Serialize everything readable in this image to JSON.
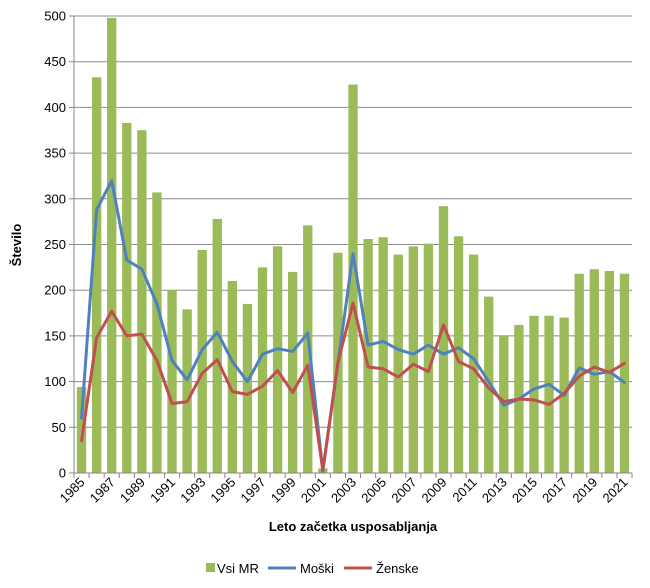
{
  "chart_data": {
    "type": "bar",
    "title": "",
    "xlabel": "Leto začetka usposabljanja",
    "ylabel": "Število",
    "ylim": [
      0,
      500
    ],
    "y_ticks": [
      0,
      50,
      100,
      150,
      200,
      250,
      300,
      350,
      400,
      450,
      500
    ],
    "grid": true,
    "legend_position": "bottom",
    "categories": [
      "1985",
      "1986",
      "1987",
      "1988",
      "1989",
      "1990",
      "1991",
      "1992",
      "1993",
      "1994",
      "1995",
      "1996",
      "1997",
      "1998",
      "1999",
      "2000",
      "2001",
      "2002",
      "2003",
      "2004",
      "2005",
      "2006",
      "2007",
      "2008",
      "2009",
      "2010",
      "2011",
      "2012",
      "2013",
      "2014",
      "2015",
      "2016",
      "2017",
      "2018",
      "2019",
      "2020",
      "2021"
    ],
    "x_tick_labels": [
      "1985",
      "1987",
      "1989",
      "1991",
      "1993",
      "1995",
      "1997",
      "1999",
      "2001",
      "2003",
      "2005",
      "2007",
      "2009",
      "2011",
      "2013",
      "2015",
      "2017",
      "2019",
      "2021"
    ],
    "series": [
      {
        "name": "Vsi MR",
        "type": "bar",
        "color": "#9BBB59",
        "values": [
          94,
          433,
          498,
          383,
          375,
          307,
          200,
          179,
          244,
          278,
          210,
          185,
          225,
          248,
          220,
          271,
          5,
          241,
          425,
          256,
          258,
          239,
          248,
          251,
          292,
          259,
          239,
          193,
          150,
          162,
          172,
          172,
          170,
          218,
          223,
          221,
          218
        ]
      },
      {
        "name": "Moški",
        "type": "line",
        "color": "#4F81BD",
        "values": [
          60,
          288,
          320,
          233,
          223,
          185,
          123,
          102,
          135,
          154,
          122,
          100,
          130,
          136,
          133,
          153,
          2,
          120,
          240,
          140,
          144,
          135,
          130,
          140,
          130,
          137,
          125,
          100,
          74,
          81,
          92,
          97,
          85,
          115,
          108,
          111,
          99
        ]
      },
      {
        "name": "Ženske",
        "type": "line",
        "color": "#C0504D",
        "values": [
          35,
          148,
          177,
          150,
          152,
          123,
          76,
          78,
          109,
          124,
          89,
          86,
          95,
          112,
          88,
          118,
          3,
          121,
          186,
          116,
          114,
          105,
          119,
          111,
          162,
          122,
          114,
          93,
          78,
          81,
          80,
          75,
          87,
          106,
          116,
          110,
          120
        ]
      }
    ]
  }
}
